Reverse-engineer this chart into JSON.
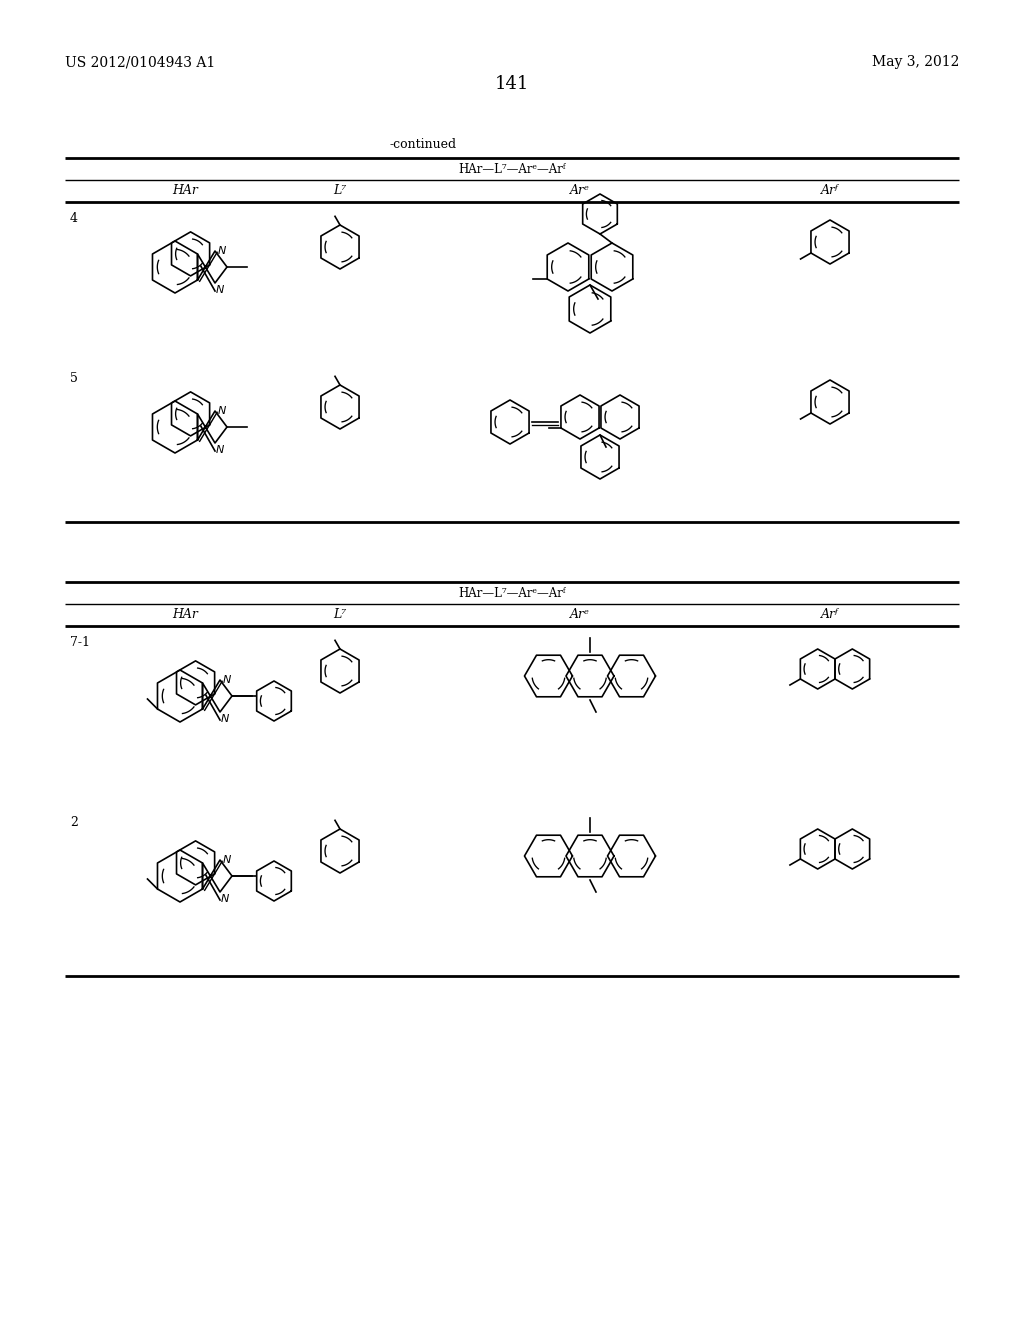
{
  "page_number": "141",
  "patent_number": "US 2012/0104943 A1",
  "date": "May 3, 2012",
  "continued_label": "-continued",
  "background_color": "#ffffff",
  "text_color": "#000000",
  "table1_formula": "HAr—L⁷—Arᵉ—Arᶠ",
  "table2_formula": "HAr—L⁷—Arᵉ—Arᶠ",
  "col_HAr": "HAr",
  "col_L": "L⁷",
  "col_Are": "Arᵉ",
  "col_Arf": "Arᶠ",
  "rows1": [
    "4",
    "5"
  ],
  "rows2": [
    "7-1",
    "2"
  ]
}
